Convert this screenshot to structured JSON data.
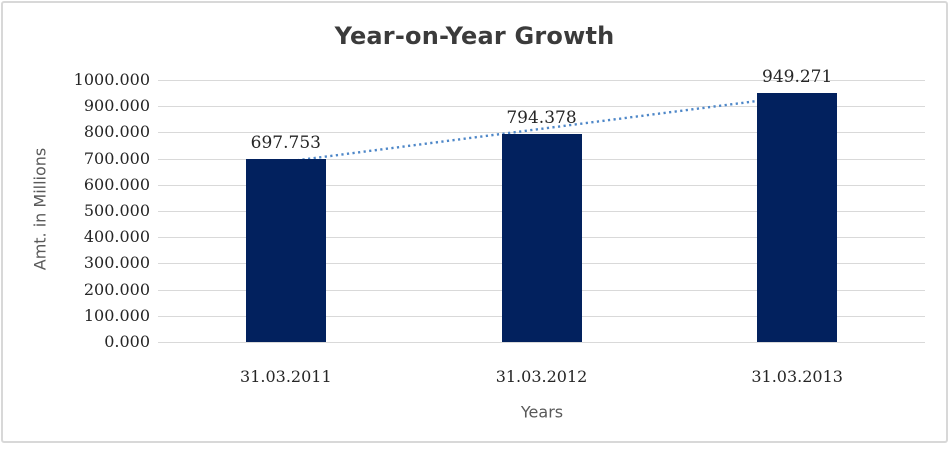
{
  "chart_data": {
    "type": "bar",
    "title": "Year-on-Year Growth",
    "categories": [
      "31.03.2011",
      "31.03.2012",
      "31.03.2013"
    ],
    "values": [
      697.753,
      794.378,
      949.271
    ],
    "data_labels": [
      "697.753",
      "794.378",
      "949.271"
    ],
    "xlabel": "Years",
    "ylabel": "Amt. in Millions",
    "ylim": [
      0,
      1000
    ],
    "y_tick_step": 100,
    "y_tick_labels": [
      "0.000",
      "100.000",
      "200.000",
      "300.000",
      "400.000",
      "500.000",
      "600.000",
      "700.000",
      "800.000",
      "900.000",
      "1000.000"
    ],
    "grid": true,
    "legend": "none",
    "trendline": {
      "type": "linear",
      "style": "dotted"
    },
    "colors": {
      "bar": "#02215e",
      "trendline": "#4e87c8",
      "gridline": "#d9d9d9",
      "title_text": "#3b3b3b",
      "axis_title_text": "#595959",
      "tick_text": "#262626",
      "frame_border": "#d8d8d8",
      "background": "#ffffff"
    }
  }
}
